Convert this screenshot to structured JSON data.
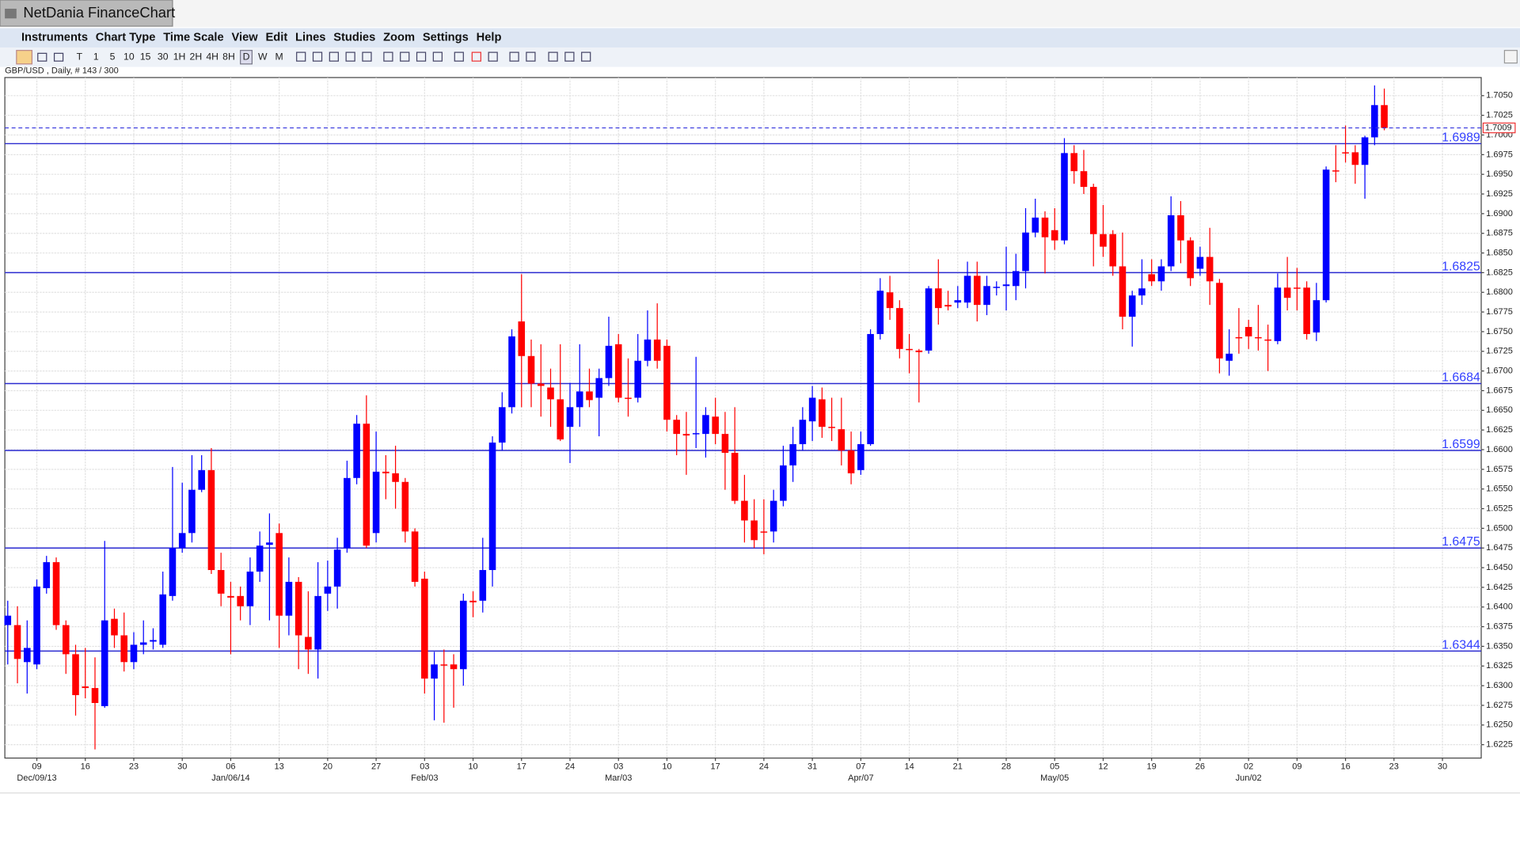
{
  "window": {
    "title": "NetDania FinanceChart"
  },
  "menu": [
    "Instruments",
    "Chart Type",
    "Time Scale",
    "View",
    "Edit",
    "Lines",
    "Studies",
    "Zoom",
    "Settings",
    "Help"
  ],
  "toolbar": [
    "T",
    "1",
    "5",
    "10",
    "15",
    "30",
    "1H",
    "2H",
    "4H",
    "8H",
    "D",
    "W",
    "M"
  ],
  "chart_data": {
    "type": "candlestick",
    "title": "GBP/USD , Daily, # 143 / 300",
    "up_color": "#0000ff",
    "down_color": "#ff0000",
    "level_color": "#2a2ad0",
    "grid": true,
    "xlim": [
      -0.3,
      152
    ],
    "ylim": [
      1.6208,
      1.7073
    ],
    "xticks": [
      {
        "value": 3,
        "label": "09"
      },
      {
        "value": 8,
        "label": "16"
      },
      {
        "value": 13,
        "label": "23"
      },
      {
        "value": 18,
        "label": "30"
      },
      {
        "value": 23,
        "label": "06"
      },
      {
        "value": 28,
        "label": "13"
      },
      {
        "value": 33,
        "label": "20"
      },
      {
        "value": 38,
        "label": "27"
      },
      {
        "value": 43,
        "label": "03"
      },
      {
        "value": 48,
        "label": "10"
      },
      {
        "value": 53,
        "label": "17"
      },
      {
        "value": 58,
        "label": "24"
      },
      {
        "value": 63,
        "label": "03"
      },
      {
        "value": 68,
        "label": "10"
      },
      {
        "value": 73,
        "label": "17"
      },
      {
        "value": 78,
        "label": "24"
      },
      {
        "value": 83,
        "label": "31"
      },
      {
        "value": 88,
        "label": "07"
      },
      {
        "value": 93,
        "label": "14"
      },
      {
        "value": 98,
        "label": "21"
      },
      {
        "value": 103,
        "label": "28"
      },
      {
        "value": 108,
        "label": "05"
      },
      {
        "value": 113,
        "label": "12"
      },
      {
        "value": 118,
        "label": "19"
      },
      {
        "value": 123,
        "label": "26"
      },
      {
        "value": 128,
        "label": "02"
      },
      {
        "value": 133,
        "label": "09"
      },
      {
        "value": 138,
        "label": "16"
      },
      {
        "value": 143,
        "label": "23"
      },
      {
        "value": 148,
        "label": "30"
      }
    ],
    "month_ticks": [
      {
        "value": 3,
        "label": "Dec/09/13"
      },
      {
        "value": 23,
        "label": "Jan/06/14"
      },
      {
        "value": 43,
        "label": "Feb/03"
      },
      {
        "value": 63,
        "label": "Mar/03"
      },
      {
        "value": 88,
        "label": "Apr/07"
      },
      {
        "value": 108,
        "label": "May/05"
      },
      {
        "value": 128,
        "label": "Jun/02"
      }
    ],
    "yticks": [
      {
        "value": 1.6225,
        "label": "1.6225"
      },
      {
        "value": 1.625,
        "label": "1.6250"
      },
      {
        "value": 1.6275,
        "label": "1.6275"
      },
      {
        "value": 1.63,
        "label": "1.6300"
      },
      {
        "value": 1.6325,
        "label": "1.6325"
      },
      {
        "value": 1.635,
        "label": "1.6350"
      },
      {
        "value": 1.6375,
        "label": "1.6375"
      },
      {
        "value": 1.64,
        "label": "1.6400"
      },
      {
        "value": 1.6425,
        "label": "1.6425"
      },
      {
        "value": 1.645,
        "label": "1.6450"
      },
      {
        "value": 1.6475,
        "label": "1.6475"
      },
      {
        "value": 1.65,
        "label": "1.6500"
      },
      {
        "value": 1.6525,
        "label": "1.6525"
      },
      {
        "value": 1.655,
        "label": "1.6550"
      },
      {
        "value": 1.6575,
        "label": "1.6575"
      },
      {
        "value": 1.66,
        "label": "1.6600"
      },
      {
        "value": 1.6625,
        "label": "1.6625"
      },
      {
        "value": 1.665,
        "label": "1.6650"
      },
      {
        "value": 1.6675,
        "label": "1.6675"
      },
      {
        "value": 1.67,
        "label": "1.6700"
      },
      {
        "value": 1.6725,
        "label": "1.6725"
      },
      {
        "value": 1.675,
        "label": "1.6750"
      },
      {
        "value": 1.6775,
        "label": "1.6775"
      },
      {
        "value": 1.68,
        "label": "1.6800"
      },
      {
        "value": 1.6825,
        "label": "1.6825"
      },
      {
        "value": 1.685,
        "label": "1.6850"
      },
      {
        "value": 1.6875,
        "label": "1.6875"
      },
      {
        "value": 1.69,
        "label": "1.6900"
      },
      {
        "value": 1.6925,
        "label": "1.6925"
      },
      {
        "value": 1.695,
        "label": "1.6950"
      },
      {
        "value": 1.6975,
        "label": "1.6975"
      },
      {
        "value": 1.7,
        "label": "1.7000"
      },
      {
        "value": 1.7025,
        "label": "1.7025"
      },
      {
        "value": 1.705,
        "label": "1.7050"
      }
    ],
    "levels": [
      1.6989,
      1.6825,
      1.6684,
      1.6599,
      1.6475,
      1.6344
    ],
    "open": [
      1.6377,
      1.6377,
      1.633,
      1.6327,
      1.6424,
      1.6457,
      1.6377,
      1.634,
      1.6299,
      1.6297,
      1.6274,
      1.6385,
      1.6364,
      1.633,
      1.6352,
      1.6356,
      1.6352,
      1.6414,
      1.6475,
      1.6494,
      1.6549,
      1.6574,
      1.6447,
      1.6414,
      1.6414,
      1.6401,
      1.6445,
      1.6479,
      1.6494,
      1.6389,
      1.6432,
      1.6362,
      1.6346,
      1.6417,
      1.6426,
      1.6475,
      1.6564,
      1.6633,
      1.6494,
      1.6572,
      1.657,
      1.6559,
      1.6496,
      1.6436,
      1.6309,
      1.6327,
      1.6327,
      1.6321,
      1.6408,
      1.6408,
      1.6447,
      1.6609,
      1.6654,
      1.6763,
      1.6719,
      1.6684,
      1.6679,
      1.6664,
      1.6629,
      1.6654,
      1.6674,
      1.6666,
      1.6691,
      1.6734,
      1.6666,
      1.6666,
      1.6713,
      1.674,
      1.6732,
      1.6638,
      1.662,
      1.662,
      1.662,
      1.6642,
      1.662,
      1.6596,
      1.6535,
      1.651,
      1.6496,
      1.6496,
      1.6535,
      1.658,
      1.6607,
      1.6636,
      1.6664,
      1.6629,
      1.6626,
      1.6599,
      1.6574,
      1.6607,
      1.6747,
      1.68,
      1.678,
      1.6728,
      1.6726,
      1.6726,
      1.6805,
      1.6784,
      1.6787,
      1.6787,
      1.6821,
      1.6784,
      1.6806,
      1.6808,
      1.6808,
      1.6827,
      1.6876,
      1.6895,
      1.6879,
      1.6866,
      1.6977,
      1.6954,
      1.6934,
      1.6874,
      1.6874,
      1.6833,
      1.6769,
      1.6796,
      1.6823,
      1.6814,
      1.6833,
      1.6898,
      1.6866,
      1.683,
      1.6845,
      1.6812,
      1.6713,
      1.6743,
      1.6756,
      1.6743,
      1.674,
      1.6738,
      1.6806,
      1.6806,
      1.6806,
      1.6749,
      1.679,
      1.6955,
      1.6978,
      1.6978,
      1.6962,
      1.6997,
      1.7038
    ],
    "high": [
      1.6408,
      1.6401,
      1.6383,
      1.6435,
      1.6465,
      1.6463,
      1.6383,
      1.6352,
      1.6348,
      1.6336,
      1.6484,
      1.6398,
      1.6393,
      1.6368,
      1.6383,
      1.6373,
      1.6445,
      1.6578,
      1.6558,
      1.6593,
      1.6593,
      1.6602,
      1.6469,
      1.6432,
      1.6426,
      1.6463,
      1.6496,
      1.6519,
      1.6506,
      1.6463,
      1.6438,
      1.642,
      1.6457,
      1.6459,
      1.6488,
      1.6586,
      1.6644,
      1.6669,
      1.6623,
      1.6593,
      1.6605,
      1.6564,
      1.65,
      1.6445,
      1.6343,
      1.6346,
      1.634,
      1.6417,
      1.642,
      1.6488,
      1.6617,
      1.6673,
      1.6753,
      1.6823,
      1.674,
      1.6734,
      1.6703,
      1.6734,
      1.6685,
      1.6734,
      1.6703,
      1.6703,
      1.6769,
      1.6747,
      1.6716,
      1.6747,
      1.6777,
      1.6786,
      1.674,
      1.6644,
      1.6648,
      1.6718,
      1.6654,
      1.6666,
      1.6648,
      1.6654,
      1.6568,
      1.6537,
      1.6537,
      1.6549,
      1.6605,
      1.6629,
      1.6654,
      1.6681,
      1.6679,
      1.6666,
      1.6666,
      1.6623,
      1.6623,
      1.6753,
      1.6818,
      1.6821,
      1.679,
      1.6747,
      1.6728,
      1.6808,
      1.6842,
      1.6802,
      1.6808,
      1.6839,
      1.6839,
      1.6821,
      1.6814,
      1.6858,
      1.6849,
      1.6907,
      1.6919,
      1.6903,
      1.6907,
      1.6996,
      1.6987,
      1.6981,
      1.6938,
      1.6911,
      1.6879,
      1.6876,
      1.6802,
      1.6842,
      1.6842,
      1.6842,
      1.6922,
      1.6916,
      1.687,
      1.6858,
      1.6882,
      1.6817,
      1.6753,
      1.678,
      1.6765,
      1.6784,
      1.6759,
      1.6824,
      1.6845,
      1.6831,
      1.6814,
      1.6812,
      1.696,
      1.6987,
      1.7012,
      1.6987,
      1.6999,
      1.7063,
      1.7059
    ],
    "low": [
      1.6327,
      1.6303,
      1.629,
      1.6321,
      1.6417,
      1.6371,
      1.6315,
      1.6262,
      1.6284,
      1.6219,
      1.6272,
      1.6348,
      1.6318,
      1.6321,
      1.634,
      1.6346,
      1.6348,
      1.6408,
      1.6469,
      1.6482,
      1.6546,
      1.6442,
      1.6401,
      1.634,
      1.6383,
      1.6377,
      1.6432,
      1.6383,
      1.6348,
      1.6364,
      1.6321,
      1.6315,
      1.6309,
      1.6395,
      1.6398,
      1.6469,
      1.6556,
      1.6475,
      1.6482,
      1.6537,
      1.6525,
      1.6482,
      1.6426,
      1.629,
      1.6256,
      1.6253,
      1.6272,
      1.63,
      1.6387,
      1.6393,
      1.6426,
      1.6599,
      1.6646,
      1.6654,
      1.6654,
      1.6642,
      1.6629,
      1.6611,
      1.6583,
      1.6629,
      1.6654,
      1.6617,
      1.6681,
      1.666,
      1.6642,
      1.666,
      1.6706,
      1.6703,
      1.6623,
      1.6593,
      1.6568,
      1.6602,
      1.659,
      1.6607,
      1.6549,
      1.6531,
      1.6482,
      1.6475,
      1.6467,
      1.6482,
      1.6528,
      1.6559,
      1.6599,
      1.6611,
      1.6615,
      1.6611,
      1.658,
      1.6556,
      1.6568,
      1.6605,
      1.674,
      1.6765,
      1.6716,
      1.6697,
      1.666,
      1.6722,
      1.6759,
      1.6777,
      1.678,
      1.678,
      1.6763,
      1.6771,
      1.6796,
      1.6777,
      1.679,
      1.6805,
      1.687,
      1.6824,
      1.6854,
      1.6861,
      1.6938,
      1.6925,
      1.6833,
      1.6845,
      1.6821,
      1.6753,
      1.6731,
      1.6784,
      1.6808,
      1.6802,
      1.6827,
      1.6837,
      1.6808,
      1.6821,
      1.6784,
      1.6697,
      1.6694,
      1.6722,
      1.6728,
      1.6726,
      1.67,
      1.6734,
      1.6777,
      1.6777,
      1.674,
      1.6738,
      1.6787,
      1.694,
      1.6965,
      1.6938,
      1.6919,
      1.6987,
      1.7006
    ],
    "close": [
      1.6389,
      1.6334,
      1.6348,
      1.6426,
      1.6457,
      1.6377,
      1.634,
      1.6288,
      1.6297,
      1.6278,
      1.6383,
      1.6364,
      1.633,
      1.6352,
      1.6355,
      1.6358,
      1.6416,
      1.6475,
      1.6494,
      1.6549,
      1.6574,
      1.6447,
      1.6417,
      1.6412,
      1.6401,
      1.6445,
      1.6478,
      1.6482,
      1.6389,
      1.6432,
      1.6364,
      1.6346,
      1.6414,
      1.6426,
      1.6473,
      1.6564,
      1.6633,
      1.6478,
      1.6572,
      1.657,
      1.6559,
      1.6496,
      1.6432,
      1.6309,
      1.6327,
      1.6326,
      1.6321,
      1.6408,
      1.6406,
      1.6447,
      1.6609,
      1.6654,
      1.6744,
      1.6719,
      1.6684,
      1.6681,
      1.6664,
      1.6613,
      1.6654,
      1.6674,
      1.6663,
      1.6691,
      1.6732,
      1.6666,
      1.6665,
      1.6713,
      1.674,
      1.6713,
      1.6638,
      1.662,
      1.6618,
      1.6621,
      1.6644,
      1.662,
      1.6596,
      1.6535,
      1.651,
      1.6485,
      1.6495,
      1.6535,
      1.658,
      1.6607,
      1.6638,
      1.6666,
      1.6629,
      1.6628,
      1.6599,
      1.657,
      1.6607,
      1.6747,
      1.6802,
      1.678,
      1.6728,
      1.6727,
      1.6724,
      1.6805,
      1.678,
      1.6782,
      1.679,
      1.6821,
      1.6784,
      1.6808,
      1.6807,
      1.681,
      1.6827,
      1.6876,
      1.6895,
      1.687,
      1.6866,
      1.6977,
      1.6954,
      1.6934,
      1.6874,
      1.6858,
      1.6833,
      1.6769,
      1.6796,
      1.6805,
      1.6814,
      1.6833,
      1.6898,
      1.6866,
      1.6818,
      1.6845,
      1.6814,
      1.6716,
      1.6722,
      1.6742,
      1.6744,
      1.6742,
      1.6739,
      1.6806,
      1.6793,
      1.6805,
      1.6747,
      1.679,
      1.6956,
      1.6954,
      1.6977,
      1.6962,
      1.6997,
      1.7038,
      1.7009
    ]
  }
}
